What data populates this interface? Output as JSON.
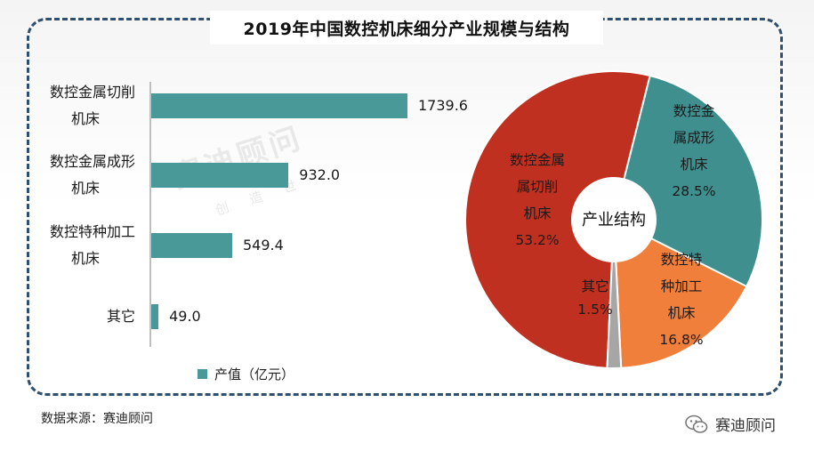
{
  "title": "2019年中国数控机床细分产业规模与结构",
  "watermark": "赛迪顾问",
  "watermark_sub": "创 造 世",
  "chart_data": [
    {
      "type": "bar",
      "orientation": "horizontal",
      "categories": [
        [
          "数控金属切削",
          "机床"
        ],
        [
          "数控金属成形",
          "机床"
        ],
        [
          "数控特种加工",
          "机床"
        ],
        [
          "其它"
        ]
      ],
      "series": [
        {
          "name": "产值（亿元）",
          "values": [
            1739.6,
            932.0,
            549.4,
            49.0
          ]
        }
      ],
      "value_labels": [
        "1739.6",
        "932.0",
        "549.4",
        "49.0"
      ],
      "color": "#4a9999",
      "legend": "bottom-left"
    },
    {
      "type": "pie",
      "style": "donut",
      "center_label": "产业结构",
      "slices": [
        {
          "lines": [
            "数控金属",
            "属切削",
            "机床",
            "53.2%"
          ],
          "value": 53.2,
          "color": "#c03020"
        },
        {
          "lines": [
            "数控金",
            "属成形",
            "机床",
            "28.5%"
          ],
          "value": 28.5,
          "color": "#3f8f8f"
        },
        {
          "lines": [
            "数控特",
            "种加工",
            "机床",
            "16.8%"
          ],
          "value": 16.8,
          "color": "#ef7f3a"
        },
        {
          "lines": [
            "其它",
            "1.5%"
          ],
          "value": 1.5,
          "color": "#a6a6a6"
        }
      ]
    }
  ],
  "legend_text": "产值（亿元）",
  "source": "数据来源：赛迪顾问",
  "brand": "赛迪顾问"
}
